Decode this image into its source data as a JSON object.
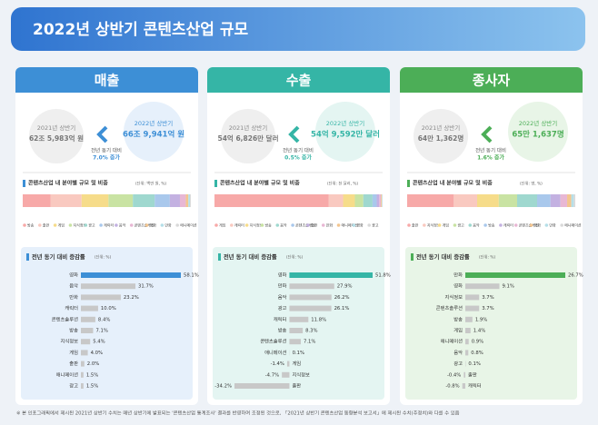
{
  "title": "2022년 상반기 콘텐츠산업 규모",
  "footnote": "※ 본 인포그래픽에서 제시된 2021년 상반기 수치는 매년 상반기에 발표되는 '콘텐츠산업 통계조사' 결과를 반영하여 조정된 것으로, 「2021년 상반기 콘텐츠산업 동향분석 보고서」에 제시된 수치(추정치)와 다를 수 있음",
  "panels": [
    {
      "header": "매출",
      "color": "#3d8fd6",
      "tint": "#e6f0fb",
      "previous": {
        "label": "2021년 상반기",
        "value": "62조 5,983억 원"
      },
      "current": {
        "label": "2022년 상반기",
        "value": "66조 9,941억 원"
      },
      "change_label": "전년 동기 대비",
      "change": "7.0% 증가",
      "composition": {
        "type": "stacked-bar",
        "title": "콘텐츠산업 내 분야별 규모 및 비중",
        "unit": "(단위: 백만 원, %)",
        "categories": [
          "방송",
          "출판",
          "게임",
          "지식정보",
          "광고",
          "캐릭터",
          "음악",
          "콘텐츠솔루션",
          "영화",
          "만화",
          "애니메이션"
        ],
        "values": [
          16.5,
          18.5,
          16.0,
          14.5,
          13.0,
          9.0,
          6.0,
          3.5,
          1.5,
          1.0,
          0.5
        ],
        "colors": [
          "#f7a9a8",
          "#f9c9c0",
          "#f6dc8a",
          "#c9e3a3",
          "#9fd8cf",
          "#a9c8ec",
          "#c3b1e1",
          "#e8b7d4",
          "#f3c58f",
          "#b5dfe8",
          "#d9d9d9"
        ]
      },
      "growth": {
        "type": "bar",
        "title": "전년 동기 대비 증감률",
        "unit": "(단위: %)",
        "highlight_color": "#3d8fd6",
        "color": "#c8c8c8",
        "categories": [
          "영화",
          "음악",
          "만화",
          "캐릭터",
          "콘텐츠솔루션",
          "방송",
          "지식정보",
          "게임",
          "출판",
          "애니메이션",
          "광고"
        ],
        "values": [
          58.1,
          31.7,
          23.2,
          10.0,
          8.4,
          7.1,
          5.4,
          4.0,
          2.0,
          1.5,
          1.5
        ],
        "value_labels": [
          "58.1%",
          "31.7%",
          "23.2%",
          "10.0%",
          "8.4%",
          "7.1%",
          "5.4%",
          "4.0%",
          "2.0%",
          "1.5%",
          "1.5%"
        ]
      }
    },
    {
      "header": "수출",
      "color": "#35b5a6",
      "tint": "#e4f5f2",
      "previous": {
        "label": "2021년 상반기",
        "value": "54억 6,826만 달러"
      },
      "current": {
        "label": "2022년 상반기",
        "value": "54억 9,592만 달러"
      },
      "change_label": "전년 동기 대비",
      "change": "0.5% 증가",
      "composition": {
        "type": "stacked-bar",
        "title": "콘텐츠산업 내 분야별 규모 및 비중",
        "unit": "(단위: 천 달러, %)",
        "categories": [
          "게임",
          "캐릭터",
          "지식정보",
          "방송",
          "음악",
          "콘텐츠솔루션",
          "출판",
          "만화",
          "애니메이션",
          "영화",
          "광고"
        ],
        "values": [
          68.0,
          8.5,
          7.0,
          5.0,
          5.5,
          2.5,
          1.5,
          1.0,
          0.5,
          0.3,
          0.2
        ],
        "colors": [
          "#f7a9a8",
          "#f9c9c0",
          "#f6dc8a",
          "#c9e3a3",
          "#9fd8cf",
          "#a9c8ec",
          "#c3b1e1",
          "#e8b7d4",
          "#f3c58f",
          "#b5dfe8",
          "#d9d9d9"
        ]
      },
      "growth": {
        "type": "bar",
        "title": "전년 동기 대비 증감률",
        "unit": "(단위: %)",
        "highlight_color": "#35b5a6",
        "color": "#c8c8c8",
        "categories": [
          "영화",
          "만화",
          "음악",
          "광고",
          "캐릭터",
          "방송",
          "콘텐츠솔루션",
          "애니메이션",
          "게임",
          "지식정보",
          "출판"
        ],
        "values": [
          51.8,
          27.9,
          26.2,
          26.1,
          11.8,
          8.3,
          7.1,
          0.1,
          -1.4,
          -4.7,
          -34.2
        ],
        "value_labels": [
          "51.8%",
          "27.9%",
          "26.2%",
          "26.1%",
          "11.8%",
          "8.3%",
          "7.1%",
          "0.1%",
          "-1.4%",
          "-4.7%",
          "-34.2%"
        ]
      }
    },
    {
      "header": "종사자",
      "color": "#4cae57",
      "tint": "#e8f5e7",
      "previous": {
        "label": "2021년 상반기",
        "value": "64만 1,362명"
      },
      "current": {
        "label": "2022년 상반기",
        "value": "65만 1,637명"
      },
      "change_label": "전년 동기 대비",
      "change": "1.6% 증가",
      "composition": {
        "type": "stacked-bar",
        "title": "콘텐츠산업 내 분야별 규모 및 비중",
        "unit": "(단위: 명, %)",
        "categories": [
          "출판",
          "지식정보",
          "게임",
          "광고",
          "음악",
          "방송",
          "캐릭터",
          "콘텐츠솔루션",
          "영화",
          "만화",
          "애니메이션"
        ],
        "values": [
          28.0,
          14.0,
          13.0,
          11.0,
          12.0,
          8.0,
          6.0,
          4.0,
          2.5,
          1.5,
          0.9
        ],
        "colors": [
          "#f7a9a8",
          "#f9c9c0",
          "#f6dc8a",
          "#c9e3a3",
          "#9fd8cf",
          "#a9c8ec",
          "#c3b1e1",
          "#e8b7d4",
          "#f3c58f",
          "#b5dfe8",
          "#d9d9d9"
        ]
      },
      "growth": {
        "type": "bar",
        "title": "전년 동기 대비 증감률",
        "unit": "(단위: %)",
        "highlight_color": "#4cae57",
        "color": "#c8c8c8",
        "categories": [
          "만화",
          "영화",
          "지식정보",
          "콘텐츠솔루션",
          "방송",
          "게임",
          "애니메이션",
          "음악",
          "광고",
          "출판",
          "캐릭터"
        ],
        "values": [
          26.7,
          9.1,
          3.7,
          3.7,
          1.9,
          1.4,
          0.9,
          0.8,
          0.1,
          -0.4,
          -0.8
        ],
        "value_labels": [
          "26.7%",
          "9.1%",
          "3.7%",
          "3.7%",
          "1.9%",
          "1.4%",
          "0.9%",
          "0.8%",
          "0.1%",
          "-0.4%",
          "-0.8%"
        ]
      }
    }
  ]
}
